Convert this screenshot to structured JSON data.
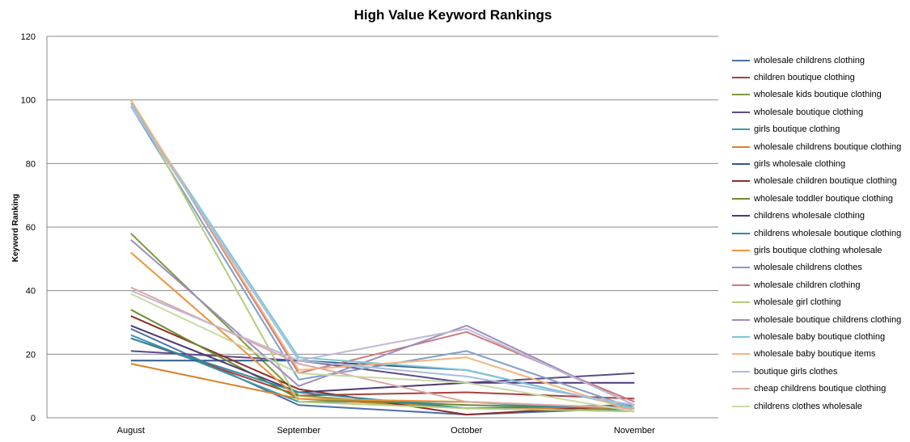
{
  "chart_data": {
    "type": "line",
    "title": "High Value  Keyword Rankings",
    "xlabel": "",
    "ylabel": "Keyword Ranking",
    "categories": [
      "August",
      "September",
      "October",
      "November"
    ],
    "ylim": [
      0,
      120
    ],
    "yticks": [
      0,
      20,
      40,
      60,
      80,
      100,
      120
    ],
    "grid": true,
    "legend_position": "right",
    "series": [
      {
        "name": "wholesale childrens clothing",
        "color": "#4F6FA8",
        "values": [
          28,
          4,
          1,
          3
        ]
      },
      {
        "name": "children boutique clothing",
        "color": "#A8413E",
        "values": [
          25,
          7,
          8,
          6
        ]
      },
      {
        "name": "wholesale kids boutique clothing",
        "color": "#7E9A3D",
        "values": [
          58,
          7,
          3,
          2
        ]
      },
      {
        "name": "wholesale boutique clothing",
        "color": "#5E4A86",
        "values": [
          21,
          18,
          11,
          14
        ]
      },
      {
        "name": "girls boutique clothing",
        "color": "#3C98AE",
        "values": [
          26,
          5,
          5,
          2
        ]
      },
      {
        "name": "wholesale childrens boutique clothing",
        "color": "#D9822B",
        "values": [
          17,
          6,
          3,
          3
        ]
      },
      {
        "name": "girls wholesale clothing",
        "color": "#2E5A8C",
        "values": [
          18,
          18,
          15,
          3
        ]
      },
      {
        "name": "wholesale children boutique clothing",
        "color": "#8C2E2B",
        "values": [
          32,
          9,
          1,
          4
        ]
      },
      {
        "name": "wholesale toddler boutique clothing",
        "color": "#6E8A2E",
        "values": [
          34,
          6,
          4,
          3
        ]
      },
      {
        "name": "childrens wholesale clothing",
        "color": "#4E3A72",
        "values": [
          29,
          8,
          11,
          11
        ]
      },
      {
        "name": "childrens wholesale boutique clothing",
        "color": "#2E8AA0",
        "values": [
          25,
          8,
          3,
          4
        ]
      },
      {
        "name": "girls boutique clothing wholesale",
        "color": "#F2923A",
        "values": [
          52,
          6,
          5,
          3
        ]
      },
      {
        "name": "wholesale childrens clothes",
        "color": "#7F9FC8",
        "values": [
          98,
          12,
          21,
          3
        ]
      },
      {
        "name": "wholesale children clothing",
        "color": "#CC7A78",
        "values": [
          100,
          14,
          27,
          5
        ]
      },
      {
        "name": "wholesale girl clothing",
        "color": "#B4CC7E",
        "values": [
          100,
          5,
          3,
          2
        ]
      },
      {
        "name": "wholesale boutique childrens clothing",
        "color": "#9E8CC0",
        "values": [
          56,
          10,
          29,
          4
        ]
      },
      {
        "name": "wholesale baby boutique clothing",
        "color": "#7EC6D6",
        "values": [
          99,
          19,
          15,
          3
        ]
      },
      {
        "name": "wholesale baby boutique items",
        "color": "#F5B47E",
        "values": [
          100,
          15,
          19,
          2
        ]
      },
      {
        "name": "boutique girls clothes",
        "color": "#A8BEDC",
        "values": [
          98,
          18,
          13,
          4
        ]
      },
      {
        "name": "cheap childrens boutique clothing",
        "color": "#DCA8A6",
        "values": [
          41,
          17,
          5,
          3
        ]
      },
      {
        "name": "childrens clothes wholesale",
        "color": "#C8DAA6",
        "values": [
          39,
          14,
          11,
          2
        ]
      },
      {
        "name": "",
        "color": "#C0B8D4",
        "values": [
          40,
          18,
          28,
          4
        ]
      }
    ]
  }
}
